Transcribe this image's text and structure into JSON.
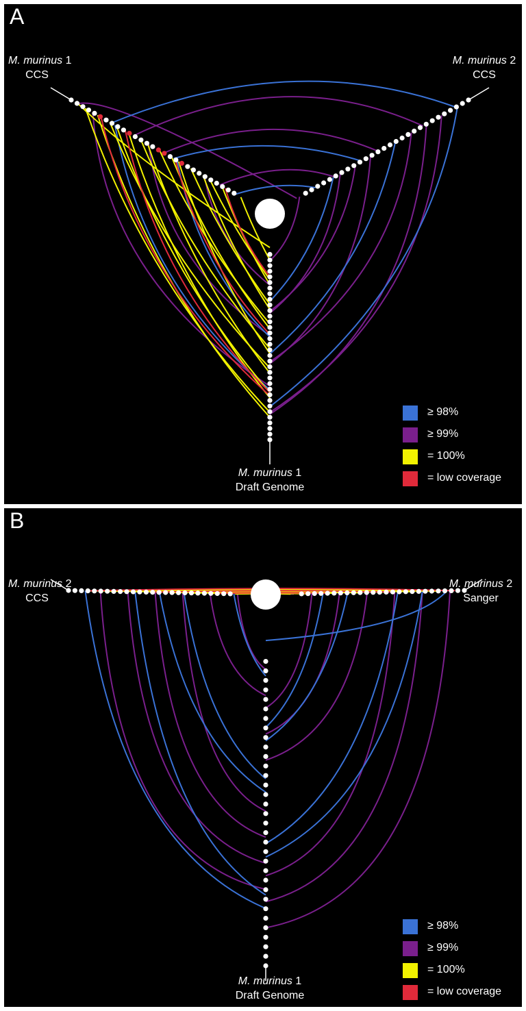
{
  "colors": {
    "blue": "#3a72d6",
    "purple": "#7a1f8c",
    "yellow": "#f2f200",
    "red": "#e02a3a",
    "white": "#ffffff"
  },
  "legend": [
    {
      "color": "#3a72d6",
      "label": "≥ 98%"
    },
    {
      "color": "#7a1f8c",
      "label": "≥ 99%"
    },
    {
      "color": "#f2f200",
      "label": "= 100%"
    },
    {
      "color": "#e02a3a",
      "label": "= low coverage"
    }
  ],
  "panels": {
    "a": {
      "letter": "A",
      "axes": {
        "left": {
          "species": "M. murinus",
          "rest": " 1",
          "line2": "CCS"
        },
        "right": {
          "species": "M. murinus",
          "rest": " 2",
          "line2": "CCS"
        },
        "bottom": {
          "species": "M. murinus",
          "rest": " 1",
          "line2": "Draft Genome"
        }
      },
      "links": {
        "purple": 14,
        "blue": 8,
        "yellow": 16,
        "red": 4
      },
      "dots": {
        "left": 29,
        "right": 28,
        "bottom": 34
      }
    },
    "b": {
      "letter": "B",
      "axes": {
        "left": {
          "species": "M. murinus",
          "rest": " 2",
          "line2": "CCS"
        },
        "right": {
          "species": "M. murinus",
          "rest": " 2",
          "line2": "Sanger"
        },
        "bottom": {
          "species": "M. murinus",
          "rest": " 1",
          "line2": "Draft Genome"
        }
      },
      "links": {
        "purple": 18,
        "blue": 10,
        "yellow": 12,
        "red": 3
      },
      "dots": {
        "left": 26,
        "right": 26,
        "bottom": 33
      }
    }
  }
}
